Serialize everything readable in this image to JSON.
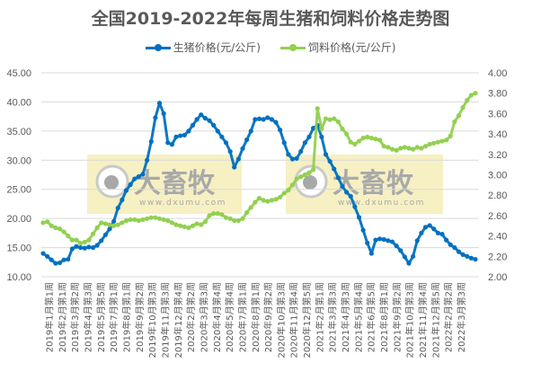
{
  "chart_data": {
    "type": "line",
    "title": "全国2019-2022年每周生猪和饲料价格走势图",
    "xlabel": "",
    "ylabel_left": "",
    "ylabel_right": "",
    "ylim_left": [
      10,
      45
    ],
    "ylim_right": [
      2.0,
      4.0
    ],
    "yticks_left": [
      "45.00",
      "40.00",
      "35.00",
      "30.00",
      "25.00",
      "20.00",
      "15.00",
      "10.00"
    ],
    "yticks_right": [
      "4.00",
      "3.80",
      "3.60",
      "3.40",
      "3.20",
      "3.00",
      "2.80",
      "2.60",
      "2.40",
      "2.20",
      "2.00"
    ],
    "grid": true,
    "legend_position": "top",
    "categories": [
      "2019年1月第1周",
      "2019年2月第1周",
      "2019年3月第2周",
      "2019年4月第3周",
      "2019年5月第5周",
      "2019年7月第1周",
      "2019年8月第1周",
      "2019年9月第2周",
      "2019年10月第3周",
      "2019年11月第3周",
      "2019年12月第4周",
      "2020年2月第2周",
      "2020年3月第3周",
      "2020年4月第4周",
      "2020年5月第4周",
      "2020年7月第1周",
      "2020年8月第1周",
      "2020年9月第2周",
      "2020年10月第3周",
      "2020年11月第4周",
      "2020年12月第5周",
      "2021年2月第1周",
      "2021年3月第3周",
      "2021年4月第3周",
      "2021年5月第4周",
      "2021年6月第5周",
      "2021年8月第1周",
      "2021年9月第2周",
      "2021年10月第3周",
      "2021年11月第4周",
      "2021年12月第5周",
      "2022年2月第2周",
      "2022年3月第3周"
    ],
    "series": [
      {
        "name": "生猪价格(元/公斤)",
        "axis": "left",
        "color": "#0070C0",
        "values": [
          14.0,
          13.5,
          12.9,
          12.3,
          12.4,
          12.9,
          13.0,
          14.8,
          15.2,
          15.0,
          14.9,
          15.1,
          15.0,
          15.4,
          16.2,
          17.2,
          18.2,
          19.5,
          21.8,
          23.2,
          24.8,
          25.8,
          26.8,
          27.2,
          27.6,
          30.0,
          33.2,
          37.3,
          39.8,
          38.0,
          33.0,
          32.7,
          34.0,
          34.2,
          34.3,
          35.0,
          36.0,
          37.0,
          37.8,
          37.2,
          36.8,
          36.0,
          35.0,
          34.0,
          33.0,
          31.5,
          28.8,
          30.2,
          32.0,
          33.5,
          35.0,
          37.0,
          37.1,
          37.0,
          37.3,
          37.0,
          36.5,
          35.2,
          33.0,
          31.0,
          30.2,
          30.3,
          31.5,
          33.0,
          34.0,
          35.5,
          36.0,
          34.0,
          31.0,
          29.8,
          28.5,
          27.0,
          25.5,
          24.5,
          23.8,
          22.0,
          20.2,
          18.0,
          15.8,
          14.0,
          16.3,
          16.5,
          16.4,
          16.2,
          16.0,
          15.3,
          14.5,
          13.4,
          12.3,
          13.5,
          16.2,
          17.5,
          18.5,
          18.8,
          18.2,
          17.5,
          17.3,
          16.3,
          15.5,
          15.0,
          14.3,
          13.8,
          13.5,
          13.2,
          13.0
        ]
      },
      {
        "name": "饲料价格(元/公斤)",
        "axis": "right",
        "color": "#92D050",
        "values": [
          2.53,
          2.54,
          2.5,
          2.48,
          2.47,
          2.44,
          2.4,
          2.36,
          2.36,
          2.33,
          2.34,
          2.36,
          2.42,
          2.48,
          2.53,
          2.52,
          2.51,
          2.5,
          2.51,
          2.53,
          2.55,
          2.56,
          2.56,
          2.55,
          2.56,
          2.57,
          2.58,
          2.58,
          2.57,
          2.56,
          2.55,
          2.53,
          2.51,
          2.5,
          2.49,
          2.48,
          2.5,
          2.52,
          2.51,
          2.54,
          2.6,
          2.62,
          2.62,
          2.61,
          2.58,
          2.57,
          2.55,
          2.55,
          2.57,
          2.63,
          2.68,
          2.73,
          2.77,
          2.75,
          2.74,
          2.75,
          2.76,
          2.78,
          2.82,
          2.85,
          2.9,
          2.96,
          2.98,
          3.0,
          3.02,
          3.05,
          3.65,
          3.45,
          3.55,
          3.54,
          3.55,
          3.52,
          3.45,
          3.4,
          3.32,
          3.3,
          3.33,
          3.36,
          3.37,
          3.36,
          3.35,
          3.34,
          3.28,
          3.27,
          3.25,
          3.24,
          3.26,
          3.27,
          3.26,
          3.25,
          3.27,
          3.26,
          3.28,
          3.3,
          3.31,
          3.32,
          3.33,
          3.34,
          3.38,
          3.52,
          3.58,
          3.66,
          3.73,
          3.78,
          3.8
        ]
      }
    ]
  },
  "header": {
    "title": "全国2019-2022年每周生猪和饲料价格走势图"
  },
  "legend": {
    "items": [
      {
        "label": "生猪价格(元/公斤)",
        "color": "#0070C0"
      },
      {
        "label": "饲料价格(元/公斤)",
        "color": "#92D050"
      }
    ]
  },
  "watermarks": [
    {
      "text": "大畜牧",
      "url": "www.dxumu.com"
    },
    {
      "text": "大畜牧",
      "url": "www.dxumu.com"
    }
  ]
}
